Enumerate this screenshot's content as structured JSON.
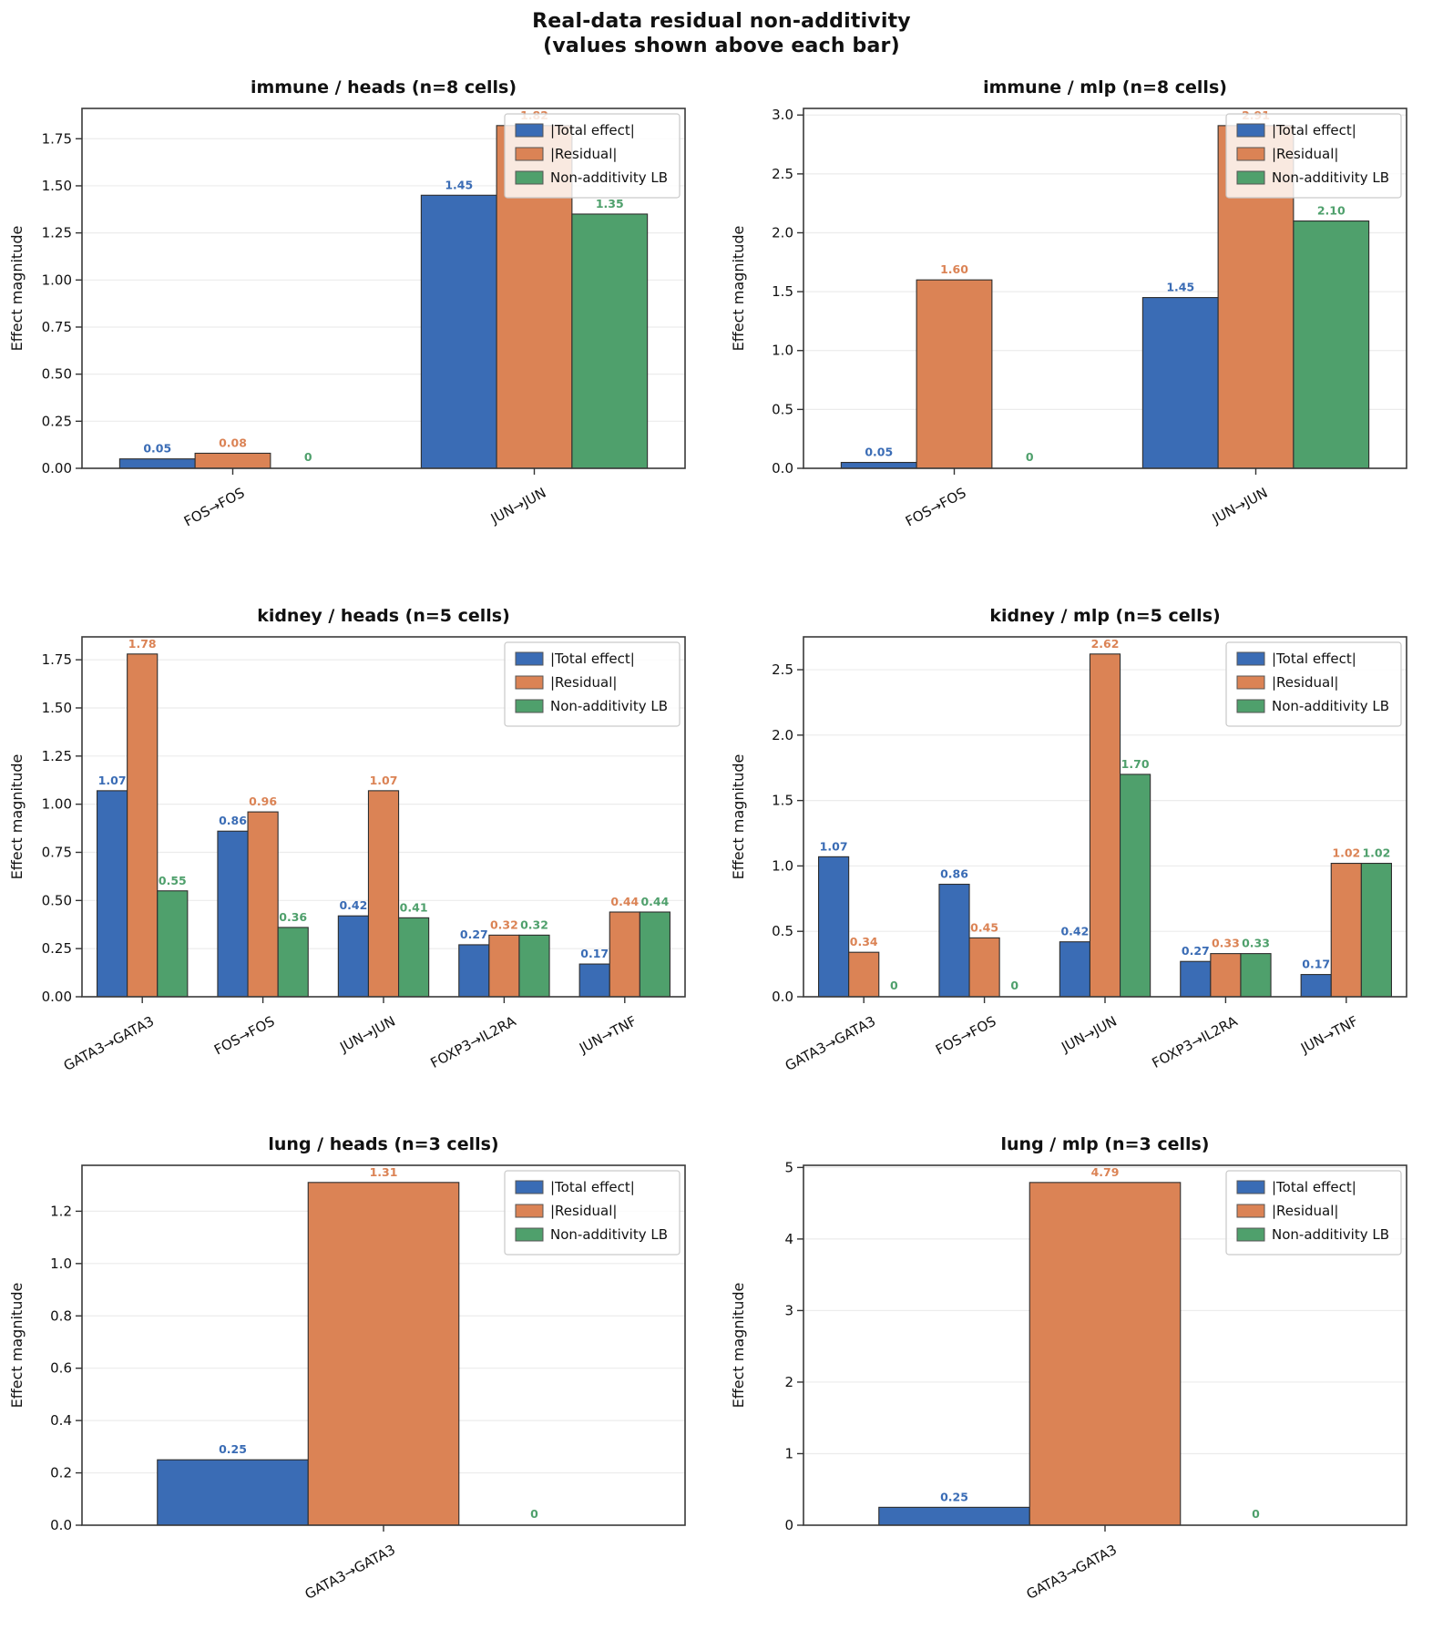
{
  "figure": {
    "title_line1": "Real-data residual non-additivity",
    "title_line2": "(values shown above each bar)"
  },
  "style": {
    "bar_edge_color": "#2e2e2e",
    "spine_color": "#3a3a3a",
    "grid_color": "#ececec",
    "tick_color": "#333333",
    "legend_border_color": "#c9c9c9",
    "legend_bg_color": "#ffffff",
    "text_color": "#111111"
  },
  "legend": {
    "entries": [
      {
        "label": "|Total effect|",
        "color": "#3a6cb5"
      },
      {
        "label": "|Residual|",
        "color": "#db8355"
      },
      {
        "label": "Non-additivity LB",
        "color": "#4fa06c"
      }
    ]
  },
  "chart_data": [
    {
      "type": "bar",
      "key": "immune-heads",
      "title": "immune / heads (n=8 cells)",
      "ylabel": "Effect magnitude",
      "categories": [
        "FOS→FOS",
        "JUN→JUN"
      ],
      "series": [
        {
          "name": "|Total effect|",
          "color": "#3a6cb5",
          "values": [
            0.05,
            1.45
          ],
          "labels": [
            "0.05",
            "1.45"
          ]
        },
        {
          "name": "|Residual|",
          "color": "#db8355",
          "values": [
            0.08,
            1.82
          ],
          "labels": [
            "0.08",
            "1.82"
          ]
        },
        {
          "name": "Non-additivity LB",
          "color": "#4fa06c",
          "values": [
            0,
            1.35
          ],
          "labels": [
            "0",
            "1.35"
          ]
        }
      ],
      "ylim": [
        0,
        1.911
      ],
      "yticks": [
        0,
        0.25,
        0.5,
        0.75,
        1.0,
        1.25,
        1.5,
        1.75
      ],
      "ytick_labels": [
        "0.00",
        "0.25",
        "0.50",
        "0.75",
        "1.00",
        "1.25",
        "1.50",
        "1.75"
      ],
      "grid": "horizontal",
      "legend_position": "upper right"
    },
    {
      "type": "bar",
      "key": "immune-mlp",
      "title": "immune / mlp (n=8 cells)",
      "ylabel": "Effect magnitude",
      "categories": [
        "FOS→FOS",
        "JUN→JUN"
      ],
      "series": [
        {
          "name": "|Total effect|",
          "color": "#3a6cb5",
          "values": [
            0.05,
            1.45
          ],
          "labels": [
            "0.05",
            "1.45"
          ]
        },
        {
          "name": "|Residual|",
          "color": "#db8355",
          "values": [
            1.6,
            2.91
          ],
          "labels": [
            "1.60",
            "2.91"
          ]
        },
        {
          "name": "Non-additivity LB",
          "color": "#4fa06c",
          "values": [
            0,
            2.1
          ],
          "labels": [
            "0",
            "2.10"
          ]
        }
      ],
      "ylim": [
        0,
        3.056
      ],
      "yticks": [
        0,
        0.5,
        1.0,
        1.5,
        2.0,
        2.5,
        3.0
      ],
      "ytick_labels": [
        "0.0",
        "0.5",
        "1.0",
        "1.5",
        "2.0",
        "2.5",
        "3.0"
      ],
      "grid": "horizontal",
      "legend_position": "upper right"
    },
    {
      "type": "bar",
      "key": "kidney-heads",
      "title": "kidney / heads (n=5 cells)",
      "ylabel": "Effect magnitude",
      "categories": [
        "GATA3→GATA3",
        "FOS→FOS",
        "JUN→JUN",
        "FOXP3→IL2RA",
        "JUN→TNF"
      ],
      "series": [
        {
          "name": "|Total effect|",
          "color": "#3a6cb5",
          "values": [
            1.07,
            0.86,
            0.42,
            0.27,
            0.17
          ],
          "labels": [
            "1.07",
            "0.86",
            "0.42",
            "0.27",
            "0.17"
          ]
        },
        {
          "name": "|Residual|",
          "color": "#db8355",
          "values": [
            1.78,
            0.96,
            1.07,
            0.32,
            0.44
          ],
          "labels": [
            "1.78",
            "0.96",
            "1.07",
            "0.32",
            "0.44"
          ]
        },
        {
          "name": "Non-additivity LB",
          "color": "#4fa06c",
          "values": [
            0.55,
            0.36,
            0.41,
            0.32,
            0.44
          ],
          "labels": [
            "0.55",
            "0.36",
            "0.41",
            "0.32",
            "0.44"
          ]
        }
      ],
      "ylim": [
        0,
        1.869
      ],
      "yticks": [
        0,
        0.25,
        0.5,
        0.75,
        1.0,
        1.25,
        1.5,
        1.75
      ],
      "ytick_labels": [
        "0.00",
        "0.25",
        "0.50",
        "0.75",
        "1.00",
        "1.25",
        "1.50",
        "1.75"
      ],
      "grid": "horizontal",
      "legend_position": "upper right"
    },
    {
      "type": "bar",
      "key": "kidney-mlp",
      "title": "kidney / mlp (n=5 cells)",
      "ylabel": "Effect magnitude",
      "categories": [
        "GATA3→GATA3",
        "FOS→FOS",
        "JUN→JUN",
        "FOXP3→IL2RA",
        "JUN→TNF"
      ],
      "series": [
        {
          "name": "|Total effect|",
          "color": "#3a6cb5",
          "values": [
            1.07,
            0.86,
            0.42,
            0.27,
            0.17
          ],
          "labels": [
            "1.07",
            "0.86",
            "0.42",
            "0.27",
            "0.17"
          ]
        },
        {
          "name": "|Residual|",
          "color": "#db8355",
          "values": [
            0.34,
            0.45,
            2.62,
            0.33,
            1.02
          ],
          "labels": [
            "0.34",
            "0.45",
            "2.62",
            "0.33",
            "1.02"
          ]
        },
        {
          "name": "Non-additivity LB",
          "color": "#4fa06c",
          "values": [
            0,
            0,
            1.7,
            0.33,
            1.02
          ],
          "labels": [
            "0",
            "0",
            "1.70",
            "0.33",
            "1.02"
          ]
        }
      ],
      "ylim": [
        0,
        2.751
      ],
      "yticks": [
        0,
        0.5,
        1.0,
        1.5,
        2.0,
        2.5
      ],
      "ytick_labels": [
        "0.0",
        "0.5",
        "1.0",
        "1.5",
        "2.0",
        "2.5"
      ],
      "grid": "horizontal",
      "legend_position": "upper right"
    },
    {
      "type": "bar",
      "key": "lung-heads",
      "title": "lung / heads (n=3 cells)",
      "ylabel": "Effect magnitude",
      "categories": [
        "GATA3→GATA3"
      ],
      "series": [
        {
          "name": "|Total effect|",
          "color": "#3a6cb5",
          "values": [
            0.25
          ],
          "labels": [
            "0.25"
          ]
        },
        {
          "name": "|Residual|",
          "color": "#db8355",
          "values": [
            1.31
          ],
          "labels": [
            "1.31"
          ]
        },
        {
          "name": "Non-additivity LB",
          "color": "#4fa06c",
          "values": [
            0
          ],
          "labels": [
            "0"
          ]
        }
      ],
      "ylim": [
        0,
        1.3755
      ],
      "yticks": [
        0,
        0.2,
        0.4,
        0.6,
        0.8,
        1.0,
        1.2
      ],
      "ytick_labels": [
        "0.0",
        "0.2",
        "0.4",
        "0.6",
        "0.8",
        "1.0",
        "1.2"
      ],
      "grid": "horizontal",
      "legend_position": "upper right"
    },
    {
      "type": "bar",
      "key": "lung-mlp",
      "title": "lung / mlp (n=3 cells)",
      "ylabel": "Effect magnitude",
      "categories": [
        "GATA3→GATA3"
      ],
      "series": [
        {
          "name": "|Total effect|",
          "color": "#3a6cb5",
          "values": [
            0.25
          ],
          "labels": [
            "0.25"
          ]
        },
        {
          "name": "|Residual|",
          "color": "#db8355",
          "values": [
            4.79
          ],
          "labels": [
            "4.79"
          ]
        },
        {
          "name": "Non-additivity LB",
          "color": "#4fa06c",
          "values": [
            0
          ],
          "labels": [
            "0"
          ]
        }
      ],
      "ylim": [
        0,
        5.03
      ],
      "yticks": [
        0,
        1,
        2,
        3,
        4,
        5
      ],
      "ytick_labels": [
        "0",
        "1",
        "2",
        "3",
        "4",
        "5"
      ],
      "grid": "horizontal",
      "legend_position": "upper right"
    }
  ]
}
